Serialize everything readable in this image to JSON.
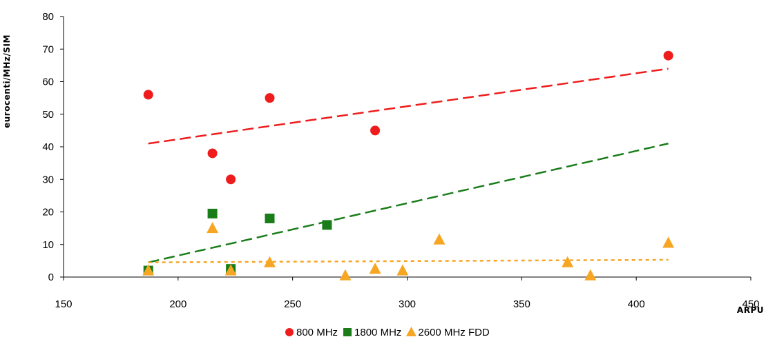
{
  "chart_data": {
    "type": "scatter",
    "title": "",
    "xlabel": "ARPU",
    "ylabel": "eurocenti/MHz/SIM",
    "xlim": [
      150,
      450
    ],
    "ylim": [
      0,
      80
    ],
    "xticks": [
      150,
      200,
      250,
      300,
      350,
      400,
      450
    ],
    "yticks": [
      0,
      10,
      20,
      30,
      40,
      50,
      60,
      70,
      80
    ],
    "grid": false,
    "legend_position": "bottom",
    "series": [
      {
        "name": "800 MHz",
        "marker": "circle",
        "color": "#ee1c1c",
        "points": [
          [
            187,
            56
          ],
          [
            215,
            38
          ],
          [
            223,
            30
          ],
          [
            240,
            55
          ],
          [
            286,
            45
          ],
          [
            414,
            68
          ]
        ],
        "trendline": {
          "x": [
            187,
            414
          ],
          "y": [
            41,
            64
          ],
          "style": "dashed"
        }
      },
      {
        "name": "1800 MHz",
        "marker": "square",
        "color": "#1a7d1a",
        "points": [
          [
            187,
            2
          ],
          [
            215,
            19.5
          ],
          [
            223,
            2.5
          ],
          [
            240,
            18
          ],
          [
            265,
            16
          ]
        ],
        "trendline": {
          "x": [
            187,
            414
          ],
          "y": [
            4.5,
            41
          ],
          "style": "dashed"
        }
      },
      {
        "name": "2600 MHz FDD",
        "marker": "triangle",
        "color": "#f7a623",
        "points": [
          [
            187,
            2
          ],
          [
            215,
            15
          ],
          [
            223,
            2
          ],
          [
            240,
            4.5
          ],
          [
            273,
            0.5
          ],
          [
            286,
            2.5
          ],
          [
            298,
            2
          ],
          [
            314,
            11.5
          ],
          [
            370,
            4.5
          ],
          [
            380,
            0.5
          ],
          [
            414,
            10.5
          ]
        ],
        "trendline": {
          "x": [
            187,
            414
          ],
          "y": [
            4.5,
            5.3
          ],
          "style": "dotted"
        }
      }
    ]
  }
}
